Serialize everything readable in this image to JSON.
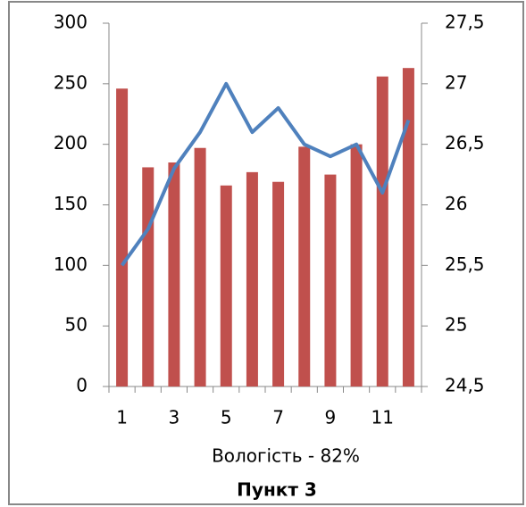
{
  "chart_data": {
    "type": "combo",
    "x_label": "Вологість - 82%",
    "title": "Пункт 3",
    "categories": [
      1,
      null,
      3,
      null,
      5,
      null,
      7,
      null,
      9,
      null,
      11,
      null
    ],
    "series": [
      {
        "type": "bar",
        "color": "#c0504d",
        "values": [
          246,
          181,
          185,
          197,
          166,
          177,
          169,
          198,
          175,
          200,
          256,
          263
        ]
      },
      {
        "type": "line",
        "axis": "y2",
        "color": "#4f81bd",
        "values": [
          25.5,
          25.8,
          26.3,
          26.6,
          27.0,
          26.6,
          26.8,
          26.5,
          26.4,
          26.5,
          26.1,
          26.7
        ]
      }
    ],
    "ylim": [
      0,
      300
    ],
    "yticks": [
      0,
      50,
      100,
      150,
      200,
      250,
      300
    ],
    "y2lim": [
      24.5,
      27.5
    ],
    "y2ticks": [
      {
        "value": 24.5,
        "label": "24,5"
      },
      25,
      {
        "value": 25.5,
        "label": "25,5"
      },
      26,
      {
        "value": 26.5,
        "label": "26,5"
      },
      27,
      {
        "value": 27.5,
        "label": "27,5"
      }
    ]
  }
}
